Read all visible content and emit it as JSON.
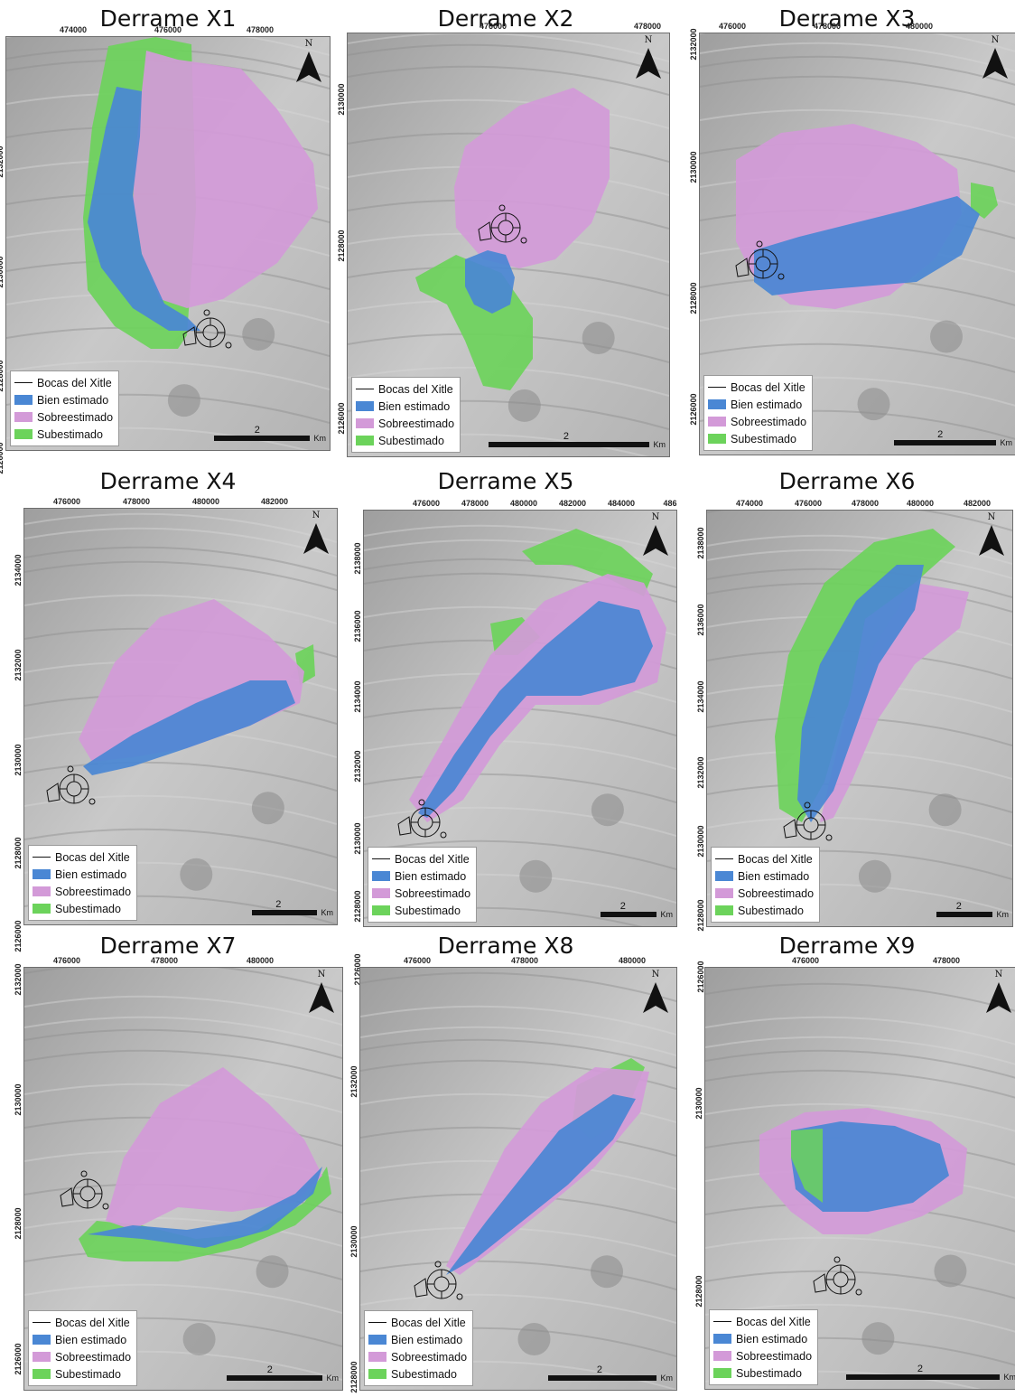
{
  "legend": {
    "vents": "Bocas del Xitle",
    "good": "Bien estimado",
    "over": "Sobreestimado",
    "under": "Subestimado"
  },
  "colors": {
    "good": "#4a87d4",
    "over": "#d39ad8",
    "under": "#6cd35b",
    "hillshade": "#bdbdbd"
  },
  "scale": {
    "value": "2",
    "unit": "Km"
  },
  "north": "N",
  "panels": [
    {
      "title": "Derrame X1",
      "xticks": [
        "474000",
        "476000",
        "478000"
      ],
      "yticks": [
        "2132000",
        "2130000",
        "2128000",
        "2126000"
      ]
    },
    {
      "title": "Derrame X2",
      "xticks": [
        "476000",
        "478000"
      ],
      "yticks": [
        "2130000",
        "2128000",
        "2126000"
      ]
    },
    {
      "title": "Derrame X3",
      "xticks": [
        "476000",
        "478000",
        "480000"
      ],
      "yticks": [
        "2132000",
        "2130000",
        "2128000",
        "2126000"
      ]
    },
    {
      "title": "Derrame X4",
      "xticks": [
        "476000",
        "478000",
        "480000",
        "482000"
      ],
      "yticks": [
        "2134000",
        "2132000",
        "2130000",
        "2128000",
        "2126000"
      ]
    },
    {
      "title": "Derrame X5",
      "xticks": [
        "476000",
        "478000",
        "480000",
        "482000",
        "484000",
        "486"
      ],
      "yticks": [
        "2138000",
        "2136000",
        "2134000",
        "2132000",
        "2130000",
        "2128000",
        "2126000"
      ]
    },
    {
      "title": "Derrame X6",
      "xticks": [
        "474000",
        "476000",
        "478000",
        "480000",
        "482000"
      ],
      "yticks": [
        "2138000",
        "2136000",
        "2134000",
        "2132000",
        "2130000",
        "2128000",
        "2126000"
      ]
    },
    {
      "title": "Derrame X7",
      "xticks": [
        "476000",
        "478000",
        "480000"
      ],
      "yticks": [
        "2132000",
        "2130000",
        "2128000",
        "2126000"
      ]
    },
    {
      "title": "Derrame X8",
      "xticks": [
        "476000",
        "478000",
        "480000"
      ],
      "yticks": [
        "2132000",
        "2130000",
        "2128000",
        "2126000"
      ]
    },
    {
      "title": "Derrame X9",
      "xticks": [
        "476000",
        "478000"
      ],
      "yticks": [
        "2130000",
        "2128000"
      ]
    }
  ]
}
